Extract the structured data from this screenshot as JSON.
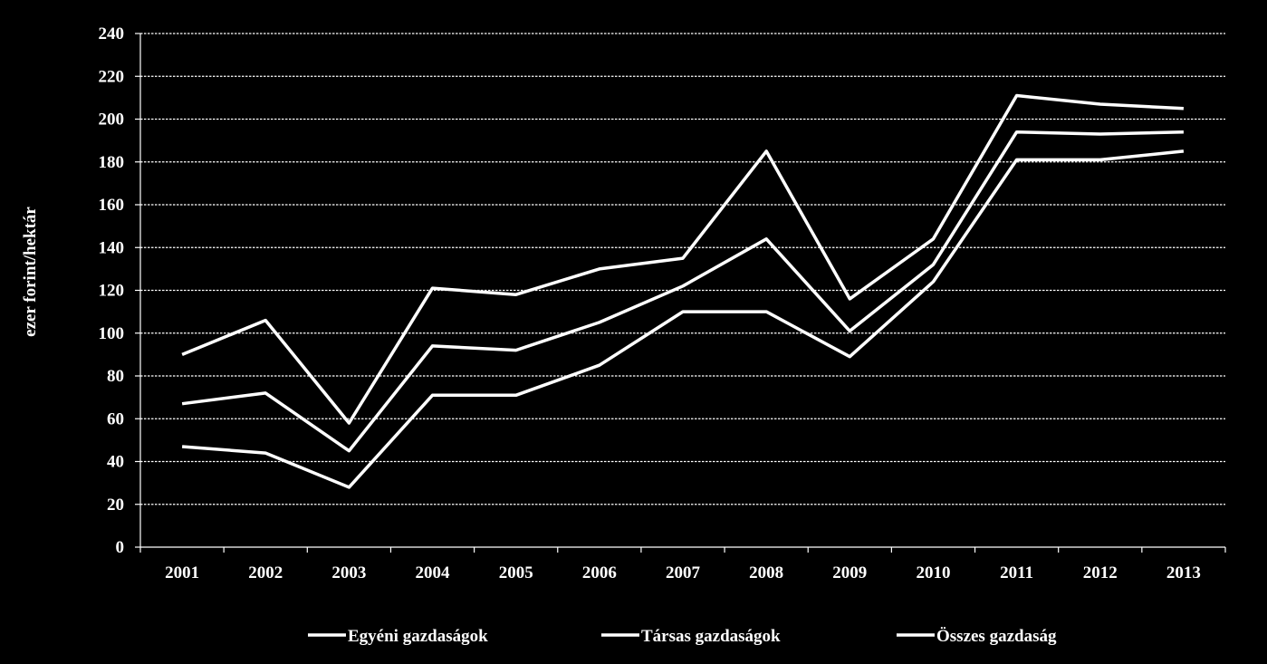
{
  "chart_data": {
    "type": "line",
    "x": [
      "2001",
      "2002",
      "2003",
      "2004",
      "2005",
      "2006",
      "2007",
      "2008",
      "2009",
      "2010",
      "2011",
      "2012",
      "2013"
    ],
    "series": [
      {
        "name": "Egyéni gazdaságok",
        "values": [
          47,
          44,
          28,
          71,
          71,
          85,
          110,
          110,
          89,
          124,
          181,
          181,
          185
        ]
      },
      {
        "name": "Társas gazdaságok",
        "values": [
          90,
          106,
          58,
          121,
          118,
          130,
          135,
          185,
          116,
          144,
          211,
          207,
          205
        ]
      },
      {
        "name": "Összes gazdaság",
        "values": [
          67,
          72,
          45,
          94,
          92,
          105,
          122,
          144,
          101,
          132,
          194,
          193,
          194
        ]
      }
    ],
    "ylabel": "ezer forint/hektár",
    "xlabel": "",
    "ylim": [
      0,
      240
    ],
    "yticks": [
      "0",
      "20",
      "40",
      "60",
      "80",
      "100",
      "120",
      "140",
      "160",
      "180",
      "200",
      "220",
      "240"
    ],
    "grid": true,
    "legend": "bottom",
    "colors": {
      "background": "#000000",
      "line": "#ffffff",
      "grid": "#ffffff",
      "text": "#ffffff"
    }
  }
}
